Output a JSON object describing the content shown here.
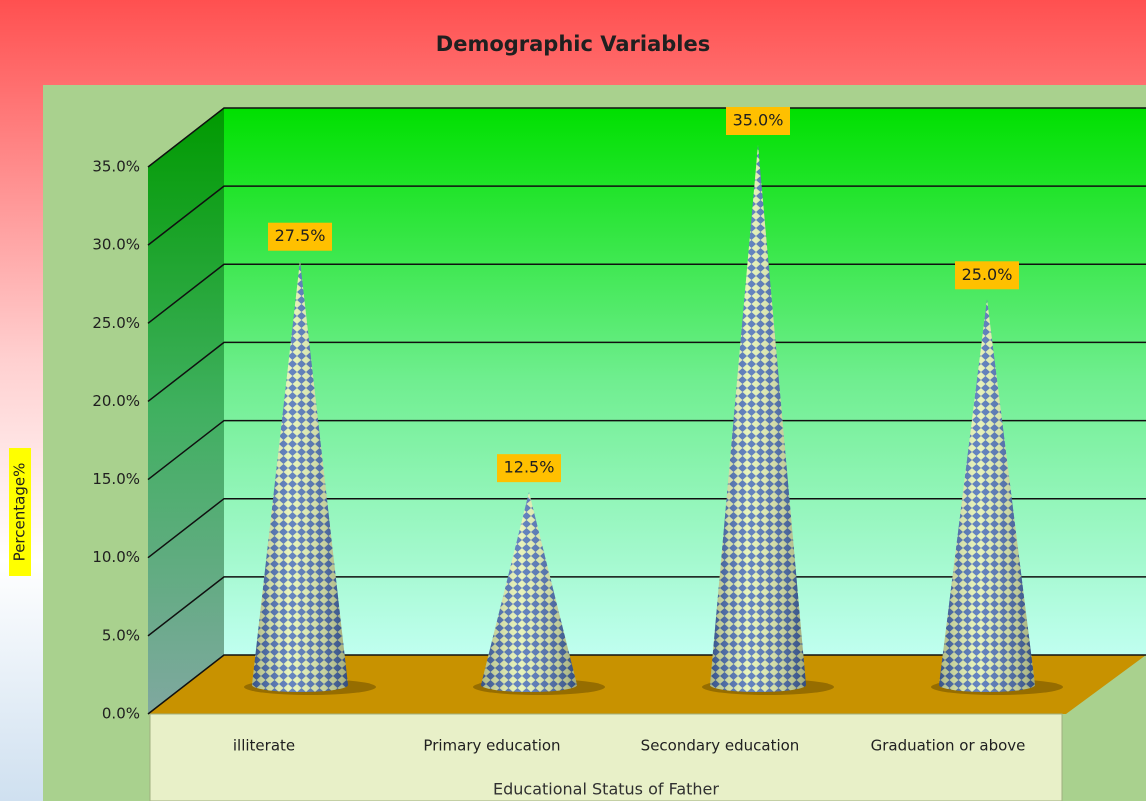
{
  "chart_data": {
    "type": "cone",
    "title": "Demographic Variables",
    "y_label": "Percentage%",
    "x_label": "Educational Status of Father",
    "categories": [
      "illiterate",
      "Primary education",
      "Secondary education",
      "Graduation or above"
    ],
    "values": [
      27.5,
      12.5,
      35,
      25
    ],
    "value_labels": [
      "27.5%",
      "12.5%",
      "35.0%",
      "25.0%"
    ],
    "color": "#4a6fb5",
    "ylim": [
      0,
      35
    ],
    "yticks": [
      {
        "value": 0,
        "label": "0.0%"
      },
      {
        "value": 5,
        "label": "5.0%"
      },
      {
        "value": 10,
        "label": "10.0%"
      },
      {
        "value": 15,
        "label": "15.0%"
      },
      {
        "value": 20,
        "label": "20.0%"
      },
      {
        "value": 25,
        "label": "25.0%"
      },
      {
        "value": 30,
        "label": "30.0%"
      },
      {
        "value": 35,
        "label": "35.0%"
      }
    ],
    "grid": true
  }
}
